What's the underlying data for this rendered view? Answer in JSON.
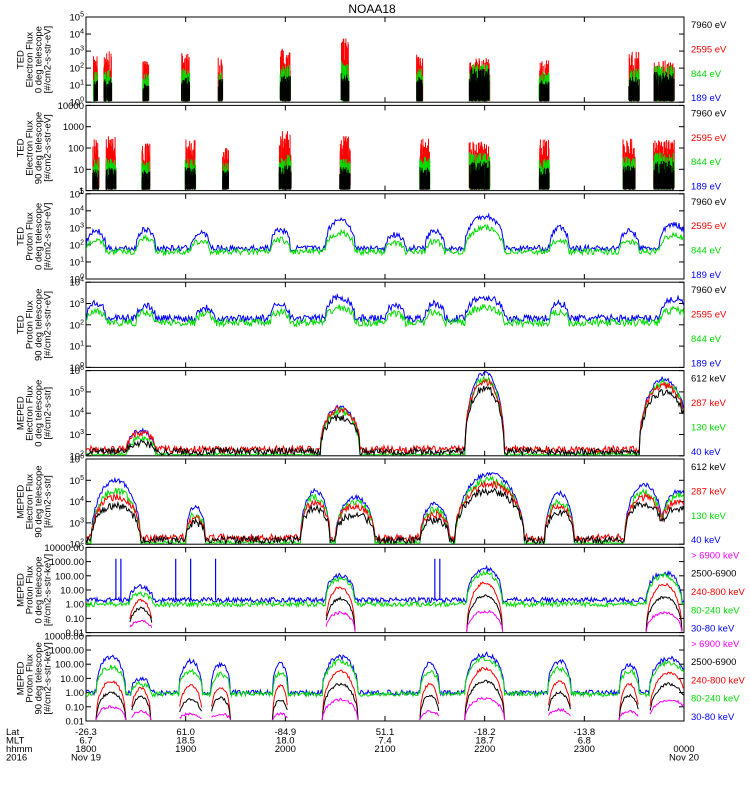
{
  "title": "NOAA18",
  "footer": {
    "row_labels": [
      "Lat",
      "MLT",
      "hhmm",
      "2016"
    ],
    "columns": [
      {
        "lat": "-26.3",
        "mlt": "6.7",
        "hhmm": "1800",
        "date": "Nov 19"
      },
      {
        "lat": "61.0",
        "mlt": "18.5",
        "hhmm": "1900",
        "date": ""
      },
      {
        "lat": "-84.9",
        "mlt": "18.0",
        "hhmm": "2000",
        "date": ""
      },
      {
        "lat": "51.1",
        "mlt": "7.4",
        "hhmm": "2100",
        "date": ""
      },
      {
        "lat": "-18.2",
        "mlt": "18.7",
        "hhmm": "2200",
        "date": ""
      },
      {
        "lat": "-13.8",
        "mlt": "6.8",
        "hhmm": "2300",
        "date": ""
      },
      {
        "lat": "",
        "mlt": "",
        "hhmm": "0000",
        "date": "Nov 20"
      }
    ]
  },
  "colors": {
    "black": "#000000",
    "red": "#ff0000",
    "green": "#00dd00",
    "blue": "#0000ff",
    "magenta": "#ff00ff"
  },
  "chart_data": [
    {
      "type": "line",
      "panel": 1,
      "log_y": true,
      "ylabel": [
        "TED",
        "Electron Flux",
        "0 deg telescope",
        "[#/cm2-s-str-eV]"
      ],
      "y_tick_labels": [
        "10^0",
        "10^1",
        "10^2",
        "10^3",
        "10^4",
        "10^5"
      ],
      "ylim_exp": [
        0,
        5
      ],
      "legend": [
        {
          "name": "7960 eV",
          "color": "black"
        },
        {
          "name": "2595 eV",
          "color": "red"
        },
        {
          "name": "844 eV",
          "color": "green"
        },
        {
          "name": "189 eV",
          "color": "blue"
        }
      ],
      "x_hours": [
        18,
        24
      ],
      "series_order": [
        "red",
        "green",
        "black"
      ],
      "events": [
        {
          "t": 18.1,
          "w": 0.02,
          "red": 2.8,
          "green": 1.8,
          "black": 1.3
        },
        {
          "t": 18.22,
          "w": 0.04,
          "red": 3.0,
          "green": 1.9,
          "black": 1.4
        },
        {
          "t": 18.6,
          "w": 0.03,
          "red": 2.5,
          "green": 1.7,
          "black": 1.2
        },
        {
          "t": 19.0,
          "w": 0.04,
          "red": 2.9,
          "green": 2.0,
          "black": 1.5
        },
        {
          "t": 19.35,
          "w": 0.02,
          "red": 2.7,
          "green": 1.8,
          "black": 1.4
        },
        {
          "t": 20.0,
          "w": 0.05,
          "red": 3.2,
          "green": 2.2,
          "black": 1.6
        },
        {
          "t": 20.6,
          "w": 0.04,
          "red": 3.8,
          "green": 2.5,
          "black": 1.7
        },
        {
          "t": 21.35,
          "w": 0.03,
          "red": 2.8,
          "green": 2.0,
          "black": 1.5
        },
        {
          "t": 21.95,
          "w": 0.1,
          "red": 2.6,
          "green": 2.3,
          "black": 2.0
        },
        {
          "t": 22.6,
          "w": 0.05,
          "red": 2.5,
          "green": 1.8,
          "black": 1.3
        },
        {
          "t": 23.5,
          "w": 0.05,
          "red": 3.0,
          "green": 2.0,
          "black": 1.5
        },
        {
          "t": 23.8,
          "w": 0.1,
          "red": 2.5,
          "green": 2.2,
          "black": 1.8
        }
      ]
    },
    {
      "type": "line",
      "panel": 2,
      "log_y": true,
      "ylabel": [
        "TED",
        "Electron Flux",
        "90 deg telescope",
        "[#/cm2-s-str-eV]"
      ],
      "y_tick_labels": [
        "1",
        "10",
        "100",
        "1000",
        "10000"
      ],
      "ylim_exp": [
        0,
        4
      ],
      "legend": [
        {
          "name": "7960 eV",
          "color": "black"
        },
        {
          "name": "2595 eV",
          "color": "red"
        },
        {
          "name": "844 eV",
          "color": "green"
        },
        {
          "name": "189 eV",
          "color": "blue"
        }
      ],
      "x_hours": [
        18,
        24
      ],
      "series_order": [
        "red",
        "green",
        "black"
      ],
      "events": [
        {
          "t": 18.1,
          "w": 0.03,
          "red": 2.5,
          "green": 1.5,
          "black": 1.0
        },
        {
          "t": 18.25,
          "w": 0.05,
          "red": 2.6,
          "green": 1.6,
          "black": 1.1
        },
        {
          "t": 18.6,
          "w": 0.04,
          "red": 2.3,
          "green": 1.4,
          "black": 1.0
        },
        {
          "t": 19.05,
          "w": 0.05,
          "red": 2.4,
          "green": 1.5,
          "black": 1.1
        },
        {
          "t": 19.4,
          "w": 0.03,
          "red": 2.0,
          "green": 1.3,
          "black": 1.0
        },
        {
          "t": 20.0,
          "w": 0.06,
          "red": 2.8,
          "green": 1.7,
          "black": 1.2
        },
        {
          "t": 20.6,
          "w": 0.05,
          "red": 2.6,
          "green": 1.6,
          "black": 1.1
        },
        {
          "t": 21.4,
          "w": 0.05,
          "red": 2.5,
          "green": 1.6,
          "black": 1.1
        },
        {
          "t": 21.95,
          "w": 0.1,
          "red": 2.3,
          "green": 1.8,
          "black": 1.4
        },
        {
          "t": 22.6,
          "w": 0.05,
          "red": 2.4,
          "green": 1.5,
          "black": 1.1
        },
        {
          "t": 23.45,
          "w": 0.06,
          "red": 2.5,
          "green": 1.6,
          "black": 1.2
        },
        {
          "t": 23.8,
          "w": 0.1,
          "red": 2.4,
          "green": 1.8,
          "black": 1.4
        }
      ]
    },
    {
      "type": "line",
      "panel": 3,
      "log_y": true,
      "ylabel": [
        "TED",
        "Proton Flux",
        "0 deg telescope",
        "[#/cm2-s-str-eV]"
      ],
      "y_tick_labels": [
        "10^0",
        "10^1",
        "10^2",
        "10^3",
        "10^4",
        "10^5"
      ],
      "ylim_exp": [
        0,
        5
      ],
      "legend": [
        {
          "name": "7960 eV",
          "color": "black"
        },
        {
          "name": "2595 eV",
          "color": "red"
        },
        {
          "name": "844 eV",
          "color": "green"
        },
        {
          "name": "189 eV",
          "color": "blue"
        }
      ],
      "x_hours": [
        18,
        24
      ],
      "baseline": {
        "green": 1.6,
        "blue": 1.8
      },
      "peaks": [
        {
          "t": 18.1,
          "w": 0.1,
          "blue": 2.8,
          "green": 2.3
        },
        {
          "t": 18.6,
          "w": 0.1,
          "blue": 2.9,
          "green": 2.4
        },
        {
          "t": 19.15,
          "w": 0.1,
          "blue": 2.7,
          "green": 2.2
        },
        {
          "t": 19.95,
          "w": 0.1,
          "blue": 2.9,
          "green": 2.3
        },
        {
          "t": 20.55,
          "w": 0.15,
          "blue": 3.5,
          "green": 2.7
        },
        {
          "t": 21.1,
          "w": 0.1,
          "blue": 2.6,
          "green": 2.1
        },
        {
          "t": 21.5,
          "w": 0.1,
          "blue": 2.8,
          "green": 2.2
        },
        {
          "t": 22.0,
          "w": 0.2,
          "blue": 3.7,
          "green": 3.0
        },
        {
          "t": 22.75,
          "w": 0.1,
          "blue": 3.0,
          "green": 2.3
        },
        {
          "t": 23.45,
          "w": 0.1,
          "blue": 2.8,
          "green": 2.2
        },
        {
          "t": 23.9,
          "w": 0.15,
          "blue": 3.2,
          "green": 2.6
        }
      ]
    },
    {
      "type": "line",
      "panel": 4,
      "log_y": true,
      "ylabel": [
        "TED",
        "Proton Flux",
        "90 deg telescope",
        "[#/cm2-s-str-eV]"
      ],
      "y_tick_labels": [
        "10^0",
        "10^1",
        "10^2",
        "10^3",
        "10^4"
      ],
      "ylim_exp": [
        0,
        4
      ],
      "legend": [
        {
          "name": "7960 eV",
          "color": "black"
        },
        {
          "name": "2595 eV",
          "color": "red"
        },
        {
          "name": "844 eV",
          "color": "green"
        },
        {
          "name": "189 eV",
          "color": "blue"
        }
      ],
      "x_hours": [
        18,
        24
      ],
      "baseline": {
        "green": 2.1,
        "blue": 2.3
      },
      "peaks": [
        {
          "t": 18.1,
          "w": 0.1,
          "blue": 3.0,
          "green": 2.6
        },
        {
          "t": 18.6,
          "w": 0.1,
          "blue": 2.9,
          "green": 2.6
        },
        {
          "t": 19.2,
          "w": 0.1,
          "blue": 2.8,
          "green": 2.5
        },
        {
          "t": 19.95,
          "w": 0.1,
          "blue": 3.0,
          "green": 2.6
        },
        {
          "t": 20.55,
          "w": 0.15,
          "blue": 3.3,
          "green": 2.8
        },
        {
          "t": 21.1,
          "w": 0.1,
          "blue": 2.9,
          "green": 2.5
        },
        {
          "t": 21.5,
          "w": 0.1,
          "blue": 3.0,
          "green": 2.6
        },
        {
          "t": 22.0,
          "w": 0.2,
          "blue": 3.3,
          "green": 2.8
        },
        {
          "t": 22.75,
          "w": 0.1,
          "blue": 3.0,
          "green": 2.6
        },
        {
          "t": 23.9,
          "w": 0.15,
          "blue": 3.2,
          "green": 2.7
        }
      ]
    },
    {
      "type": "line",
      "panel": 5,
      "log_y": true,
      "ylabel": [
        "MEPED",
        "Electron Flux",
        "0 deg telescope",
        "[#/cm2-s-str]"
      ],
      "y_tick_labels": [
        "10^2",
        "10^3",
        "10^4",
        "10^5",
        "10^6"
      ],
      "ylim_exp": [
        2,
        6
      ],
      "legend": [
        {
          "name": "612 keV",
          "color": "black"
        },
        {
          "name": "287 keV",
          "color": "red"
        },
        {
          "name": "130 keV",
          "color": "green"
        },
        {
          "name": "40 keV",
          "color": "blue"
        }
      ],
      "x_hours": [
        18,
        24
      ],
      "baseline": {
        "green": 2.0,
        "black": 2.2,
        "red": 2.3
      },
      "peaks": [
        {
          "t": 18.55,
          "w": 0.15,
          "blue": 3.2,
          "green": 2.8,
          "red": 3.1,
          "black": 2.6
        },
        {
          "t": 20.55,
          "w": 0.2,
          "blue": 4.3,
          "green": 4.1,
          "red": 4.2,
          "black": 3.8
        },
        {
          "t": 22.0,
          "w": 0.2,
          "blue": 5.9,
          "green": 5.6,
          "red": 5.5,
          "black": 5.2
        },
        {
          "t": 23.8,
          "w": 0.25,
          "blue": 5.6,
          "green": 5.4,
          "red": 5.3,
          "black": 5.0
        }
      ]
    },
    {
      "type": "line",
      "panel": 6,
      "log_y": true,
      "ylabel": [
        "MEPED",
        "Electron Flux",
        "90 deg telescope",
        "[#/cm2-s-str]"
      ],
      "y_tick_labels": [
        "10^2",
        "10^3",
        "10^4",
        "10^5",
        "10^6"
      ],
      "ylim_exp": [
        2,
        6
      ],
      "legend": [
        {
          "name": "612 keV",
          "color": "black"
        },
        {
          "name": "287 keV",
          "color": "red"
        },
        {
          "name": "130 keV",
          "color": "green"
        },
        {
          "name": "40 keV",
          "color": "blue"
        }
      ],
      "x_hours": [
        18,
        24
      ],
      "baseline": {
        "green": 2.0,
        "black": 2.2,
        "red": 2.3
      },
      "peaks": [
        {
          "t": 18.3,
          "w": 0.25,
          "blue": 5.0,
          "green": 4.5,
          "red": 4.2,
          "black": 3.8
        },
        {
          "t": 19.1,
          "w": 0.1,
          "blue": 3.8,
          "green": 3.4,
          "red": 3.2,
          "black": 3.0
        },
        {
          "t": 20.3,
          "w": 0.15,
          "blue": 4.5,
          "green": 4.2,
          "red": 4.0,
          "black": 3.7
        },
        {
          "t": 20.7,
          "w": 0.2,
          "blue": 4.2,
          "green": 4.0,
          "red": 3.8,
          "black": 3.4
        },
        {
          "t": 21.5,
          "w": 0.15,
          "blue": 3.9,
          "green": 3.6,
          "red": 3.4,
          "black": 3.1
        },
        {
          "t": 22.05,
          "w": 0.35,
          "blue": 5.3,
          "green": 5.0,
          "red": 4.8,
          "black": 4.5
        },
        {
          "t": 22.75,
          "w": 0.15,
          "blue": 4.4,
          "green": 4.0,
          "red": 3.8,
          "black": 3.5
        },
        {
          "t": 23.6,
          "w": 0.2,
          "blue": 4.8,
          "green": 4.4,
          "red": 4.2,
          "black": 3.9
        },
        {
          "t": 23.95,
          "w": 0.2,
          "blue": 4.5,
          "green": 4.3,
          "red": 4.0,
          "black": 3.7
        }
      ]
    },
    {
      "type": "line",
      "panel": 7,
      "log_y": true,
      "ylabel": [
        "MEPED",
        "Proton Flux",
        "0 deg telescope",
        "[#/cm2-s-str-keV]"
      ],
      "y_tick_labels": [
        "0.01",
        "0.10",
        "1.00",
        "10.00",
        "100.00",
        "1000.00",
        "10000.00"
      ],
      "ylim_exp": [
        -2,
        4
      ],
      "legend": [
        {
          "name": "> 6900 keV",
          "color": "magenta"
        },
        {
          "name": "2500-6900",
          "color": "black"
        },
        {
          "name": "240-800 keV",
          "color": "red"
        },
        {
          "name": "80-240 keV",
          "color": "green"
        },
        {
          "name": "30-80 keV",
          "color": "blue"
        }
      ],
      "x_hours": [
        18,
        24
      ],
      "baseline": {
        "blue": 0.3,
        "green": 0.0
      },
      "peaks": [
        {
          "t": 18.55,
          "w": 0.12,
          "blue": 1.2,
          "green": 0.7,
          "red": 0.3,
          "black": -0.3,
          "magenta": -1.2
        },
        {
          "t": 20.55,
          "w": 0.15,
          "blue": 2.0,
          "green": 1.8,
          "red": 1.2,
          "black": 0.4,
          "magenta": -0.6
        },
        {
          "t": 22.0,
          "w": 0.18,
          "blue": 2.5,
          "green": 2.2,
          "red": 1.5,
          "black": 0.6,
          "magenta": -0.5
        },
        {
          "t": 23.8,
          "w": 0.18,
          "blue": 2.2,
          "green": 2.0,
          "red": 1.4,
          "black": 0.5,
          "magenta": -0.6
        }
      ],
      "spikes_blue": [
        18.3,
        18.35,
        18.9,
        19.05,
        19.3,
        21.5,
        21.55
      ]
    },
    {
      "type": "line",
      "panel": 8,
      "log_y": true,
      "ylabel": [
        "MEPED",
        "Proton Flux",
        "90 deg telescope",
        "[#/cm2-s-str-keV]"
      ],
      "y_tick_labels": [
        "0.01",
        "0.10",
        "1.00",
        "10.00",
        "100.00",
        "1000.00",
        "10000.00"
      ],
      "ylim_exp": [
        -2,
        4
      ],
      "legend": [
        {
          "name": "> 6900 keV",
          "color": "magenta"
        },
        {
          "name": "2500-6900",
          "color": "black"
        },
        {
          "name": "240-800 keV",
          "color": "red"
        },
        {
          "name": "80-240 keV",
          "color": "green"
        },
        {
          "name": "30-80 keV",
          "color": "blue"
        }
      ],
      "x_hours": [
        18,
        24
      ],
      "baseline": {
        "blue": 0.0,
        "green": -0.1
      },
      "peaks": [
        {
          "t": 18.25,
          "w": 0.15,
          "blue": 2.5,
          "green": 1.8,
          "red": 0.8,
          "black": 0.0,
          "magenta": -1.0
        },
        {
          "t": 18.55,
          "w": 0.1,
          "blue": 1.0,
          "green": 0.6,
          "red": 0.3,
          "black": -0.3,
          "magenta": -1.3
        },
        {
          "t": 19.05,
          "w": 0.12,
          "blue": 2.2,
          "green": 1.5,
          "red": 0.5,
          "black": -0.5,
          "magenta": -1.5
        },
        {
          "t": 19.35,
          "w": 0.1,
          "blue": 2.0,
          "green": 1.3,
          "red": 0.4,
          "black": -0.4,
          "magenta": -1.5
        },
        {
          "t": 19.95,
          "w": 0.08,
          "blue": 2.0,
          "green": 1.4,
          "red": 0.5,
          "black": -0.5,
          "magenta": -1.5
        },
        {
          "t": 20.55,
          "w": 0.18,
          "blue": 2.5,
          "green": 2.2,
          "red": 1.5,
          "black": 0.6,
          "magenta": -0.5
        },
        {
          "t": 21.45,
          "w": 0.1,
          "blue": 2.0,
          "green": 1.5,
          "red": 0.6,
          "black": -0.2,
          "magenta": -1.3
        },
        {
          "t": 22.0,
          "w": 0.2,
          "blue": 2.7,
          "green": 2.4,
          "red": 1.7,
          "black": 0.8,
          "magenta": -0.4
        },
        {
          "t": 22.75,
          "w": 0.12,
          "blue": 2.2,
          "green": 1.7,
          "red": 0.8,
          "black": 0.0,
          "magenta": -1.2
        },
        {
          "t": 23.45,
          "w": 0.1,
          "blue": 2.0,
          "green": 1.5,
          "red": 0.6,
          "black": -0.2,
          "magenta": -1.3
        },
        {
          "t": 23.85,
          "w": 0.2,
          "blue": 2.4,
          "green": 2.1,
          "red": 1.4,
          "black": 0.6,
          "magenta": -0.5
        }
      ]
    }
  ]
}
